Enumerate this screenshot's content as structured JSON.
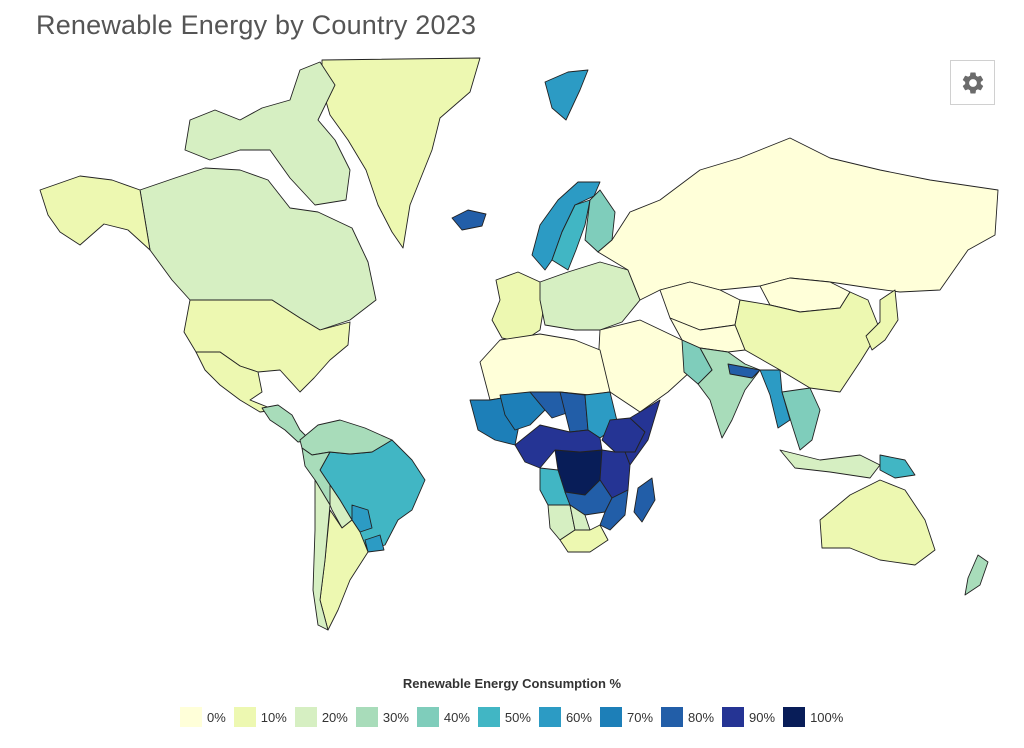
{
  "title": "Renewable Energy by Country 2023",
  "settings_icon": "gear-icon",
  "legend": {
    "title": "Renewable Energy Consumption %",
    "items": [
      {
        "label": "0%",
        "color": "#ffffd9"
      },
      {
        "label": "10%",
        "color": "#edf8b1"
      },
      {
        "label": "20%",
        "color": "#d6efc2"
      },
      {
        "label": "30%",
        "color": "#a8dcba"
      },
      {
        "label": "40%",
        "color": "#7fcdbb"
      },
      {
        "label": "50%",
        "color": "#41b6c4"
      },
      {
        "label": "60%",
        "color": "#2c9bc4"
      },
      {
        "label": "70%",
        "color": "#1d7fb8"
      },
      {
        "label": "80%",
        "color": "#225ea8"
      },
      {
        "label": "90%",
        "color": "#253494"
      },
      {
        "label": "100%",
        "color": "#081d58"
      }
    ]
  },
  "regions": [
    {
      "name": "Greenland",
      "level": "10%"
    },
    {
      "name": "Canada",
      "level": "20%"
    },
    {
      "name": "Canadian Arctic Islands",
      "level": "20%"
    },
    {
      "name": "Alaska",
      "level": "10%"
    },
    {
      "name": "United States",
      "level": "10%"
    },
    {
      "name": "Mexico",
      "level": "10%"
    },
    {
      "name": "Central America",
      "level": "30%"
    },
    {
      "name": "Brazil",
      "level": "50%"
    },
    {
      "name": "Northern South America",
      "level": "30%"
    },
    {
      "name": "Peru",
      "level": "30%"
    },
    {
      "name": "Bolivia",
      "level": "20%"
    },
    {
      "name": "Paraguay",
      "level": "60%"
    },
    {
      "name": "Uruguay",
      "level": "60%"
    },
    {
      "name": "Argentina",
      "level": "10%"
    },
    {
      "name": "Chile",
      "level": "20%"
    },
    {
      "name": "Iceland",
      "level": "80%"
    },
    {
      "name": "Svalbard",
      "level": "60%"
    },
    {
      "name": "Norway",
      "level": "60%"
    },
    {
      "name": "Sweden",
      "level": "50%"
    },
    {
      "name": "Finland",
      "level": "40%"
    },
    {
      "name": "Western Europe",
      "level": "10%"
    },
    {
      "name": "Central Europe",
      "level": "20%"
    },
    {
      "name": "Russia",
      "level": "0%"
    },
    {
      "name": "Kazakhstan",
      "level": "0%"
    },
    {
      "name": "Mongolia",
      "level": "0%"
    },
    {
      "name": "China",
      "level": "10%"
    },
    {
      "name": "Japan",
      "level": "10%"
    },
    {
      "name": "Middle East",
      "level": "0%"
    },
    {
      "name": "Central Asia",
      "level": "0%"
    },
    {
      "name": "India",
      "level": "30%"
    },
    {
      "name": "Pakistan",
      "level": "40%"
    },
    {
      "name": "Nepal",
      "level": "80%"
    },
    {
      "name": "Myanmar",
      "level": "60%"
    },
    {
      "name": "Indochina",
      "level": "40%"
    },
    {
      "name": "Indonesia",
      "level": "20%"
    },
    {
      "name": "Papua New Guinea",
      "level": "50%"
    },
    {
      "name": "Australia",
      "level": "10%"
    },
    {
      "name": "New Zealand",
      "level": "30%"
    },
    {
      "name": "North Africa",
      "level": "0%"
    },
    {
      "name": "West Africa",
      "level": "70%"
    },
    {
      "name": "Mali",
      "level": "70%"
    },
    {
      "name": "Niger",
      "level": "80%"
    },
    {
      "name": "Chad",
      "level": "80%"
    },
    {
      "name": "Sudan",
      "level": "60%"
    },
    {
      "name": "Ethiopia",
      "level": "90%"
    },
    {
      "name": "Somalia",
      "level": "90%"
    },
    {
      "name": "DR Congo",
      "level": "100%"
    },
    {
      "name": "Central Africa",
      "level": "90%"
    },
    {
      "name": "East Africa",
      "level": "90%"
    },
    {
      "name": "Angola",
      "level": "50%"
    },
    {
      "name": "Zambia",
      "level": "80%"
    },
    {
      "name": "Mozambique",
      "level": "80%"
    },
    {
      "name": "Madagascar",
      "level": "80%"
    },
    {
      "name": "Namibia",
      "level": "20%"
    },
    {
      "name": "Botswana",
      "level": "20%"
    },
    {
      "name": "South Africa",
      "level": "10%"
    }
  ]
}
